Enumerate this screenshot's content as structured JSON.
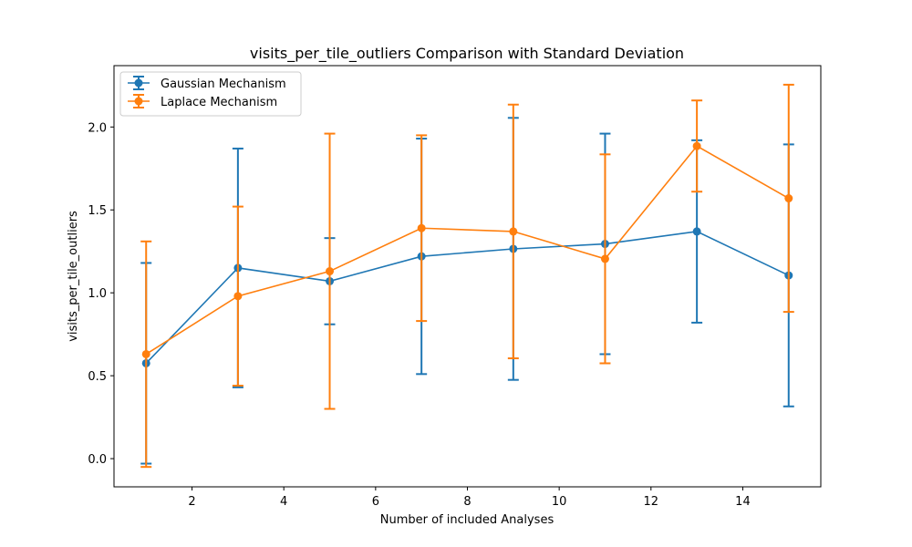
{
  "chart_data": {
    "type": "line",
    "title": "visits_per_tile_outliers Comparison with Standard Deviation",
    "xlabel": "Number of included Analyses",
    "ylabel": "visits_per_tile_outliers",
    "x": [
      1,
      3,
      5,
      7,
      9,
      11,
      13,
      15
    ],
    "xlim": [
      0.3,
      15.7
    ],
    "ylim": [
      -0.17,
      2.37
    ],
    "xticks": [
      2,
      4,
      6,
      8,
      10,
      12,
      14
    ],
    "yticks": [
      0.0,
      0.5,
      1.0,
      1.5,
      2.0
    ],
    "grid": false,
    "legend": "top-left",
    "series": [
      {
        "name": "Gaussian Mechanism",
        "color": "#1f77b4",
        "values": [
          0.575,
          1.15,
          1.07,
          1.22,
          1.265,
          1.295,
          1.37,
          1.105
        ],
        "error": [
          0.605,
          0.72,
          0.26,
          0.71,
          0.79,
          0.665,
          0.55,
          0.79
        ]
      },
      {
        "name": "Laplace Mechanism",
        "color": "#ff7f0e",
        "values": [
          0.63,
          0.98,
          1.13,
          1.39,
          1.37,
          1.205,
          1.885,
          1.57
        ],
        "error": [
          0.68,
          0.54,
          0.83,
          0.56,
          0.765,
          0.63,
          0.275,
          0.685
        ]
      }
    ]
  }
}
